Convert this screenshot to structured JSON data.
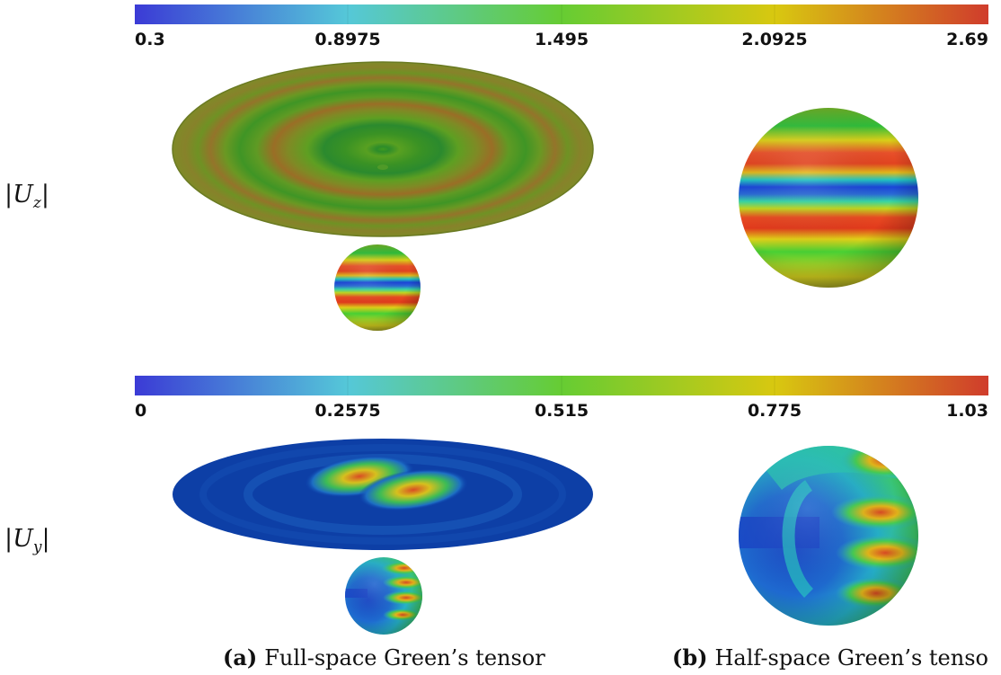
{
  "colorbars": [
    {
      "ticks": [
        "0.3",
        "0.8975",
        "1.495",
        "2.0925",
        "2.69"
      ],
      "colors": [
        "#3b3bd6",
        "#55c8d8",
        "#66cc33",
        "#d8c810",
        "#d03c2c"
      ]
    },
    {
      "ticks": [
        "0",
        "0.2575",
        "0.515",
        "0.775",
        "1.03"
      ],
      "colors": [
        "#3b3bd6",
        "#55c8d8",
        "#66cc33",
        "#d8c810",
        "#d03c2c"
      ]
    }
  ],
  "rows": [
    {
      "symbol": "U",
      "subscript": "z"
    },
    {
      "symbol": "U",
      "subscript": "y"
    }
  ],
  "captions": [
    {
      "tag": "(a)",
      "text": "Full-space Green’s tensor"
    },
    {
      "tag": "(b)",
      "text": "Half-space Green’s tenso"
    }
  ]
}
